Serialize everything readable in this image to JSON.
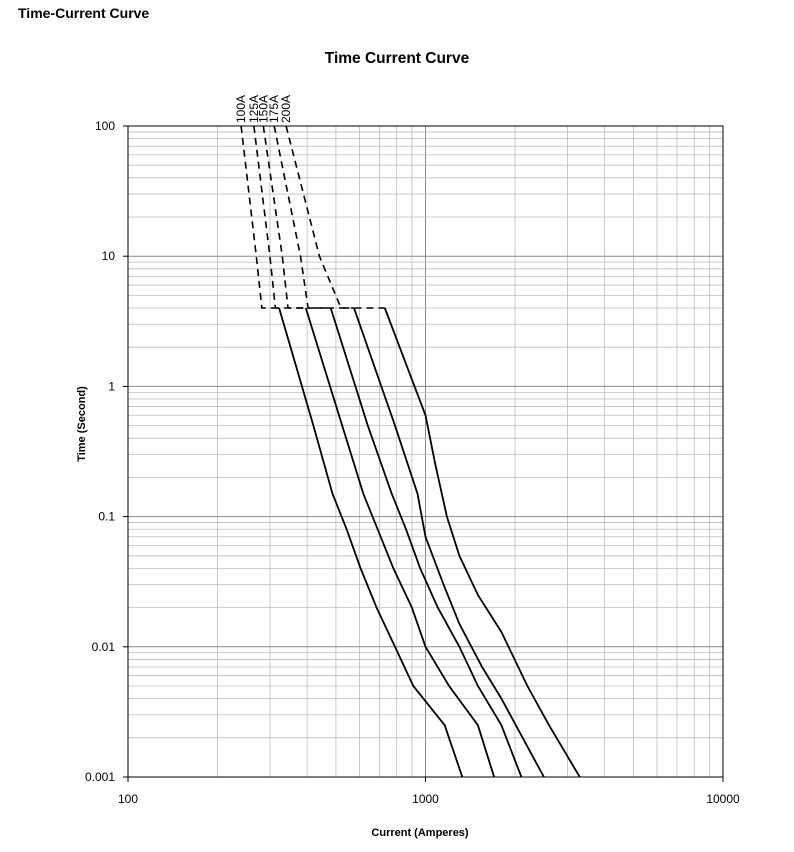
{
  "page": {
    "heading": "Time-Current Curve"
  },
  "chart_data": {
    "type": "line",
    "title": "Time Current Curve",
    "xlabel": "Current (Amperes)",
    "ylabel": "Time (Second)",
    "x_scale": "log",
    "y_scale": "log",
    "xlim": [
      100,
      10000
    ],
    "ylim": [
      0.001,
      100
    ],
    "x_ticks": [
      "100",
      "1000",
      "10000"
    ],
    "y_ticks": [
      "100",
      "10",
      "1",
      "0.1",
      "0.01",
      "0.001"
    ],
    "grid": true,
    "series": [
      {
        "name": "100A",
        "dashed": [
          [
            240,
            100
          ],
          [
            270,
            10
          ],
          [
            282,
            4
          ]
        ],
        "solid": [
          [
            322,
            4
          ],
          [
            420,
            0.5
          ],
          [
            487,
            0.15
          ],
          [
            543,
            0.08
          ],
          [
            605,
            0.04
          ],
          [
            685,
            0.02
          ],
          [
            790,
            0.01
          ],
          [
            910,
            0.005
          ],
          [
            1160,
            0.0025
          ],
          [
            1330,
            0.001
          ]
        ]
      },
      {
        "name": "125A",
        "dashed": [
          [
            265,
            100
          ],
          [
            300,
            10
          ],
          [
            313,
            4
          ]
        ],
        "solid": [
          [
            396,
            4
          ],
          [
            525,
            0.5
          ],
          [
            618,
            0.15
          ],
          [
            690,
            0.08
          ],
          [
            780,
            0.04
          ],
          [
            900,
            0.02
          ],
          [
            1000,
            0.01
          ],
          [
            1200,
            0.005
          ],
          [
            1500,
            0.0025
          ],
          [
            1700,
            0.001
          ]
        ]
      },
      {
        "name": "150A",
        "dashed": [
          [
            285,
            100
          ],
          [
            330,
            10
          ],
          [
            345,
            4
          ]
        ],
        "solid": [
          [
            480,
            4
          ],
          [
            640,
            0.5
          ],
          [
            770,
            0.15
          ],
          [
            860,
            0.08
          ],
          [
            960,
            0.04
          ],
          [
            1100,
            0.02
          ],
          [
            1300,
            0.01
          ],
          [
            1500,
            0.005
          ],
          [
            1800,
            0.0025
          ],
          [
            2100,
            0.001
          ]
        ]
      },
      {
        "name": "175A",
        "dashed": [
          [
            310,
            100
          ],
          [
            380,
            10
          ],
          [
            403,
            4
          ]
        ],
        "solid": [
          [
            575,
            4
          ],
          [
            790,
            0.5
          ],
          [
            940,
            0.15
          ],
          [
            1000,
            0.07
          ],
          [
            1150,
            0.03
          ],
          [
            1300,
            0.015
          ],
          [
            1550,
            0.007
          ],
          [
            1800,
            0.004
          ],
          [
            2500,
            0.001
          ]
        ]
      },
      {
        "name": "200A",
        "dashed": [
          [
            340,
            100
          ],
          [
            440,
            10
          ],
          [
            520,
            4
          ]
        ],
        "solid": [
          [
            730,
            4
          ],
          [
            1000,
            0.6
          ],
          [
            1080,
            0.25
          ],
          [
            1180,
            0.1
          ],
          [
            1300,
            0.05
          ],
          [
            1500,
            0.025
          ],
          [
            1800,
            0.013
          ],
          [
            2200,
            0.005
          ],
          [
            2600,
            0.0025
          ],
          [
            3300,
            0.001
          ]
        ]
      }
    ]
  }
}
